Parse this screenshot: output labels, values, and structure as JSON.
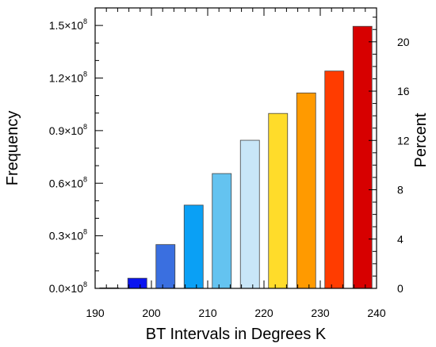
{
  "chart_data": {
    "type": "bar",
    "xlabel": "BT Intervals in Degrees K",
    "ylabel": "Frequency",
    "y2label": "Percent",
    "xlim": [
      190,
      240
    ],
    "ylim": [
      0,
      0.16
    ],
    "y_unit_multiplier": "10^8",
    "y2lim": [
      0,
      22.75
    ],
    "xticks": [
      "190",
      "200",
      "210",
      "220",
      "230",
      "240"
    ],
    "yticks": [
      {
        "mantissa": "0.0",
        "value": 0.0
      },
      {
        "mantissa": "0.3",
        "value": 0.3
      },
      {
        "mantissa": "0.6",
        "value": 0.6
      },
      {
        "mantissa": "0.9",
        "value": 0.9
      },
      {
        "mantissa": "1.2",
        "value": 1.2
      },
      {
        "mantissa": "1.5",
        "value": 1.5
      }
    ],
    "ytick_times": "×10",
    "ytick_exponent": "8",
    "y2ticks": [
      "0",
      "4",
      "8",
      "12",
      "16",
      "20"
    ],
    "bars": [
      {
        "x": 192.5,
        "value": 0.003,
        "color": "#6a0dad"
      },
      {
        "x": 197.5,
        "value": 0.058,
        "color": "#0a14f0"
      },
      {
        "x": 202.5,
        "value": 0.25,
        "color": "#3a6fe0"
      },
      {
        "x": 207.5,
        "value": 0.475,
        "color": "#0aa0f5"
      },
      {
        "x": 212.5,
        "value": 0.655,
        "color": "#64c3f0"
      },
      {
        "x": 217.5,
        "value": 0.845,
        "color": "#c8e6f8"
      },
      {
        "x": 222.5,
        "value": 0.998,
        "color": "#ffdc2a"
      },
      {
        "x": 227.5,
        "value": 1.115,
        "color": "#ff9a00"
      },
      {
        "x": 232.5,
        "value": 1.24,
        "color": "#ff3c00"
      },
      {
        "x": 237.5,
        "value": 1.495,
        "color": "#d70000"
      }
    ]
  }
}
